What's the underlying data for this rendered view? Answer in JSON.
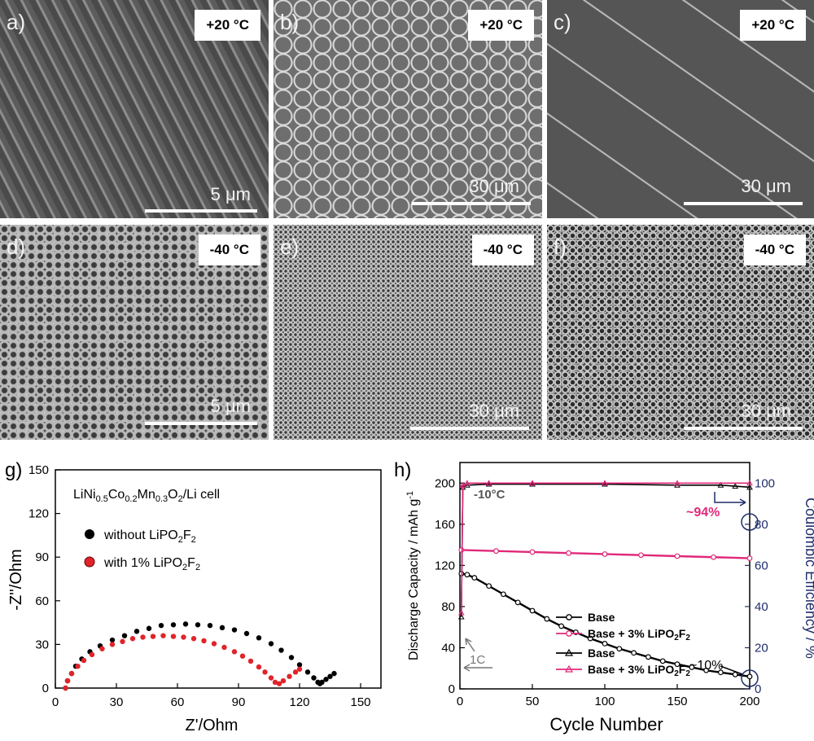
{
  "sem_panels": [
    {
      "label": "a)",
      "temp": "+20 °C",
      "scale": "5 μm",
      "texture": "coarse"
    },
    {
      "label": "b)",
      "temp": "+20 °C",
      "scale": "30 μm",
      "texture": "cells"
    },
    {
      "label": "c)",
      "temp": "+20 °C",
      "scale": "30 μm",
      "texture": "smooth"
    },
    {
      "label": "d)",
      "temp": "-40 °C",
      "scale": "5 μm",
      "texture": "porous"
    },
    {
      "label": "e)",
      "temp": "-40 °C",
      "scale": "30 μm",
      "texture": "fine"
    },
    {
      "label": "f)",
      "temp": "-40 °C",
      "scale": "30 μm",
      "texture": "fine-dark"
    }
  ],
  "colors": {
    "black_series": "#000000",
    "red_series": "#e0242a",
    "pink": "#e0297a",
    "right_axis": "#1f2d6b"
  },
  "chart_data": [
    {
      "type": "scatter",
      "panel_label": "g)",
      "xlabel": "Z'/Ohm",
      "ylabel": "-Z''/Ohm",
      "xlim": [
        0,
        160
      ],
      "ylim": [
        0,
        150
      ],
      "xticks": [
        "0",
        "30",
        "60",
        "90",
        "120",
        "150"
      ],
      "yticks": [
        "0",
        "30",
        "60",
        "90",
        "120",
        "150"
      ],
      "annotation": "LiNi0.5Co0.2Mn0.3O2/Li cell",
      "series": [
        {
          "name": "without LiPO2F2",
          "color": "#000000",
          "x": [
            5,
            6,
            8,
            10,
            13,
            17,
            22,
            28,
            34,
            40,
            46,
            52,
            58,
            64,
            70,
            76,
            82,
            88,
            94,
            100,
            106,
            111,
            116,
            120,
            124,
            127,
            129,
            130,
            131,
            133,
            135,
            137
          ],
          "y": [
            0,
            5,
            10,
            15,
            20,
            25,
            29,
            33,
            36,
            39,
            41,
            43,
            43.5,
            44,
            43.5,
            43,
            41.5,
            40,
            37.5,
            34.5,
            30.5,
            26,
            21,
            16,
            11,
            7,
            4,
            3,
            4,
            6,
            8,
            10
          ]
        },
        {
          "name": "with 1% LiPO2F2",
          "color": "#e0242a",
          "x": [
            5,
            6,
            8,
            11,
            14,
            18,
            23,
            28,
            33,
            38,
            43,
            48,
            53,
            58,
            63,
            68,
            73,
            78,
            83,
            88,
            92,
            96,
            100,
            103,
            106,
            108,
            110,
            112,
            115,
            118,
            120
          ],
          "y": [
            0,
            5,
            10,
            15,
            19,
            23,
            27,
            30,
            32,
            34,
            35,
            35.5,
            36,
            35.5,
            35,
            34,
            32.5,
            30.5,
            28,
            25,
            22,
            18.5,
            14.5,
            11,
            7,
            4,
            3,
            5,
            8,
            11,
            13
          ]
        }
      ]
    },
    {
      "type": "line",
      "panel_label": "h)",
      "xlabel": "Cycle Number",
      "ylabel": "Discharge Capacity / mAh g",
      "ylabel_sup": "-1",
      "ylabel_right": "Coulombic Efficiency / %",
      "xlim": [
        0,
        200
      ],
      "ylim": [
        0,
        220
      ],
      "ylim_right": [
        0,
        110
      ],
      "xticks": [
        "0",
        "50",
        "100",
        "150",
        "200"
      ],
      "yticks": [
        "0",
        "40",
        "80",
        "120",
        "160",
        "200"
      ],
      "yticks_right": [
        "0",
        "20",
        "40",
        "60",
        "80",
        "100"
      ],
      "annotations": {
        "temp": "-10°C",
        "rate": "1C",
        "retention_high": "~94%",
        "retention_low": "~10%"
      },
      "series": [
        {
          "name": "Base",
          "axis": "left",
          "marker": "circle",
          "color": "#000000",
          "x": [
            1,
            5,
            10,
            20,
            30,
            40,
            50,
            60,
            70,
            80,
            90,
            100,
            110,
            120,
            130,
            140,
            150,
            160,
            170,
            180,
            190,
            200
          ],
          "y": [
            112,
            111,
            108,
            100,
            92,
            84,
            76,
            68,
            61,
            55,
            49,
            44,
            39,
            35,
            31,
            27,
            24,
            21,
            18,
            16,
            14,
            12
          ]
        },
        {
          "name": "Base + 3% LiPO2F2",
          "axis": "left",
          "marker": "circle",
          "color": "#e0297a",
          "x": [
            1,
            25,
            50,
            75,
            100,
            125,
            150,
            175,
            200
          ],
          "y": [
            135,
            134,
            133,
            132,
            131,
            130,
            129,
            128,
            127
          ]
        },
        {
          "name": "Base",
          "axis": "right",
          "marker": "triangle",
          "color": "#000000",
          "x": [
            1,
            2,
            5,
            20,
            50,
            100,
            150,
            180,
            190,
            200
          ],
          "y": [
            35,
            98,
            99,
            99.5,
            99.5,
            99.5,
            99,
            99,
            98.5,
            98
          ]
        },
        {
          "name": "Base + 3% LiPO2F2",
          "axis": "right",
          "marker": "triangle",
          "color": "#e0297a",
          "x": [
            1,
            2,
            5,
            20,
            50,
            100,
            150,
            200
          ],
          "y": [
            37,
            99,
            100,
            100,
            100,
            100,
            100,
            100
          ]
        }
      ]
    }
  ]
}
